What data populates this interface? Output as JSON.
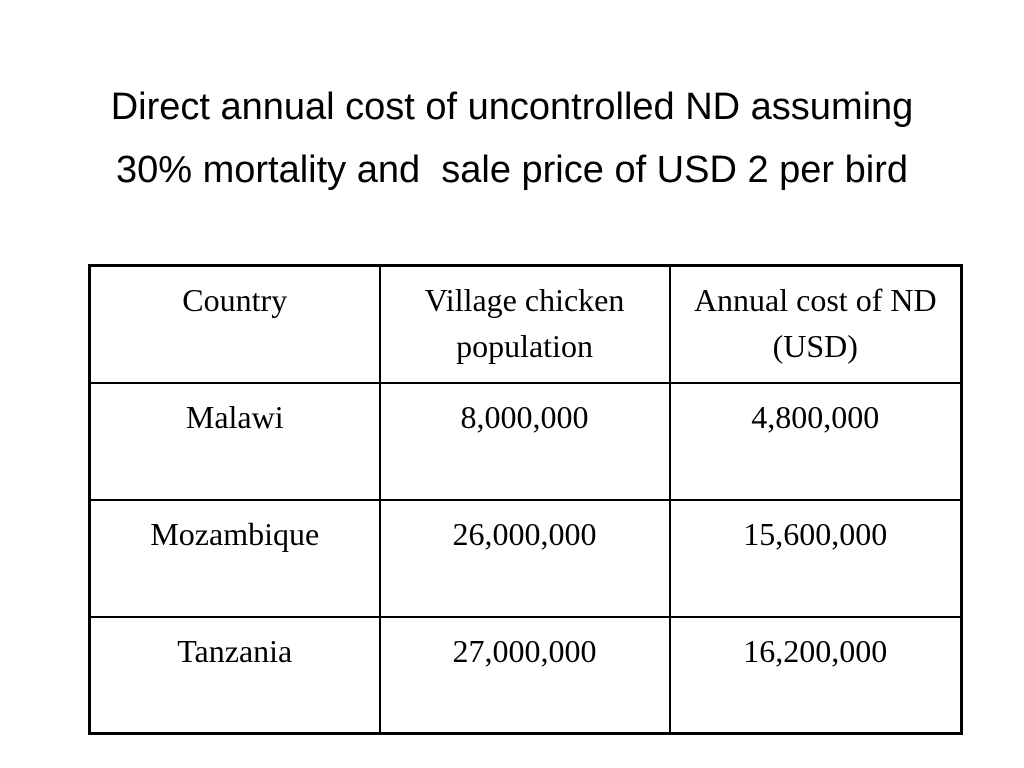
{
  "slide": {
    "title_lines": [
      "Direct annual cost of uncontrolled ND assuming",
      "30% mortality and  sale price of USD 2 per bird"
    ]
  },
  "table": {
    "headers": [
      "Country",
      "Village chicken population",
      "Annual cost of ND (USD)"
    ],
    "rows": [
      [
        "Malawi",
        "8,000,000",
        "4,800,000"
      ],
      [
        "Mozambique",
        "26,000,000",
        "15,600,000"
      ],
      [
        "Tanzania",
        "27,000,000",
        "16,200,000"
      ]
    ]
  }
}
